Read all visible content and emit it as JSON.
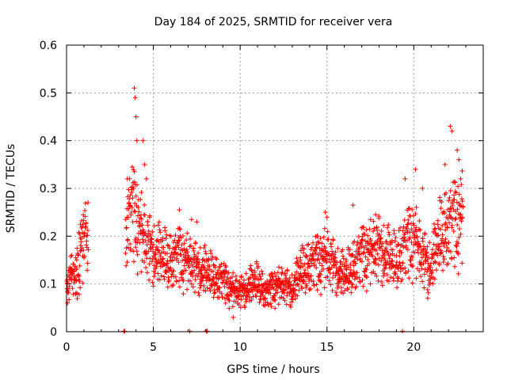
{
  "chart_data": {
    "type": "scatter",
    "title": "Day 184 of 2025, SRMTID for receiver vera",
    "xlabel": "GPS time / hours",
    "ylabel": "SRMTID / TECUs",
    "xlim": [
      0,
      24.0
    ],
    "ylim": [
      0,
      0.6
    ],
    "x_ticks": [
      0,
      5,
      10,
      15,
      20
    ],
    "y_ticks": [
      0,
      0.1,
      0.2,
      0.3,
      0.4,
      0.5,
      0.6
    ],
    "y_tick_labels": [
      "0",
      "0.1",
      "0.2",
      "0.3",
      "0.4",
      "0.5",
      "0.6"
    ],
    "grid": true,
    "marker": "plus",
    "series_color": "#ff0000",
    "profile": [
      [
        0.0,
        0.08
      ],
      [
        0.3,
        0.12
      ],
      [
        0.6,
        0.13
      ],
      [
        0.9,
        0.17
      ],
      [
        1.2,
        0.19
      ],
      [
        3.4,
        0.2
      ],
      [
        3.7,
        0.24
      ],
      [
        4.0,
        0.23
      ],
      [
        4.3,
        0.2
      ],
      [
        4.6,
        0.18
      ],
      [
        5.0,
        0.16
      ],
      [
        5.5,
        0.15
      ],
      [
        6.0,
        0.14
      ],
      [
        6.5,
        0.15
      ],
      [
        7.0,
        0.14
      ],
      [
        7.5,
        0.13
      ],
      [
        8.0,
        0.12
      ],
      [
        8.5,
        0.11
      ],
      [
        9.0,
        0.1
      ],
      [
        9.5,
        0.085
      ],
      [
        10.0,
        0.08
      ],
      [
        10.5,
        0.09
      ],
      [
        11.0,
        0.1
      ],
      [
        11.5,
        0.075
      ],
      [
        12.0,
        0.09
      ],
      [
        12.5,
        0.095
      ],
      [
        13.0,
        0.085
      ],
      [
        13.5,
        0.12
      ],
      [
        14.0,
        0.13
      ],
      [
        14.5,
        0.14
      ],
      [
        15.0,
        0.15
      ],
      [
        15.5,
        0.13
      ],
      [
        16.0,
        0.11
      ],
      [
        16.5,
        0.13
      ],
      [
        17.0,
        0.15
      ],
      [
        17.5,
        0.16
      ],
      [
        18.0,
        0.17
      ],
      [
        18.5,
        0.15
      ],
      [
        19.0,
        0.14
      ],
      [
        19.5,
        0.17
      ],
      [
        20.0,
        0.19
      ],
      [
        20.5,
        0.15
      ],
      [
        21.0,
        0.13
      ],
      [
        21.5,
        0.19
      ],
      [
        22.0,
        0.21
      ],
      [
        22.5,
        0.22
      ],
      [
        22.8,
        0.23
      ]
    ],
    "spikes": [
      [
        0.05,
        0.06
      ],
      [
        0.3,
        0.16
      ],
      [
        0.8,
        0.225
      ],
      [
        1.0,
        0.2
      ],
      [
        3.5,
        0.32
      ],
      [
        3.9,
        0.51
      ],
      [
        3.95,
        0.49
      ],
      [
        4.0,
        0.45
      ],
      [
        4.05,
        0.4
      ],
      [
        4.4,
        0.4
      ],
      [
        4.5,
        0.35
      ],
      [
        4.6,
        0.32
      ],
      [
        6.5,
        0.255
      ],
      [
        7.2,
        0.235
      ],
      [
        7.5,
        0.23
      ],
      [
        9.6,
        0.03
      ],
      [
        13.5,
        0.17
      ],
      [
        14.9,
        0.25
      ],
      [
        15.0,
        0.24
      ],
      [
        16.5,
        0.265
      ],
      [
        17.8,
        0.245
      ],
      [
        19.5,
        0.32
      ],
      [
        20.1,
        0.34
      ],
      [
        20.5,
        0.3
      ],
      [
        20.8,
        0.07
      ],
      [
        21.8,
        0.35
      ],
      [
        22.1,
        0.43
      ],
      [
        22.2,
        0.42
      ],
      [
        22.5,
        0.38
      ],
      [
        22.6,
        0.36
      ],
      [
        22.7,
        0.32
      ]
    ],
    "zero_points": [
      3.3,
      3.35,
      7.1,
      8.05,
      8.1,
      19.35
    ]
  }
}
